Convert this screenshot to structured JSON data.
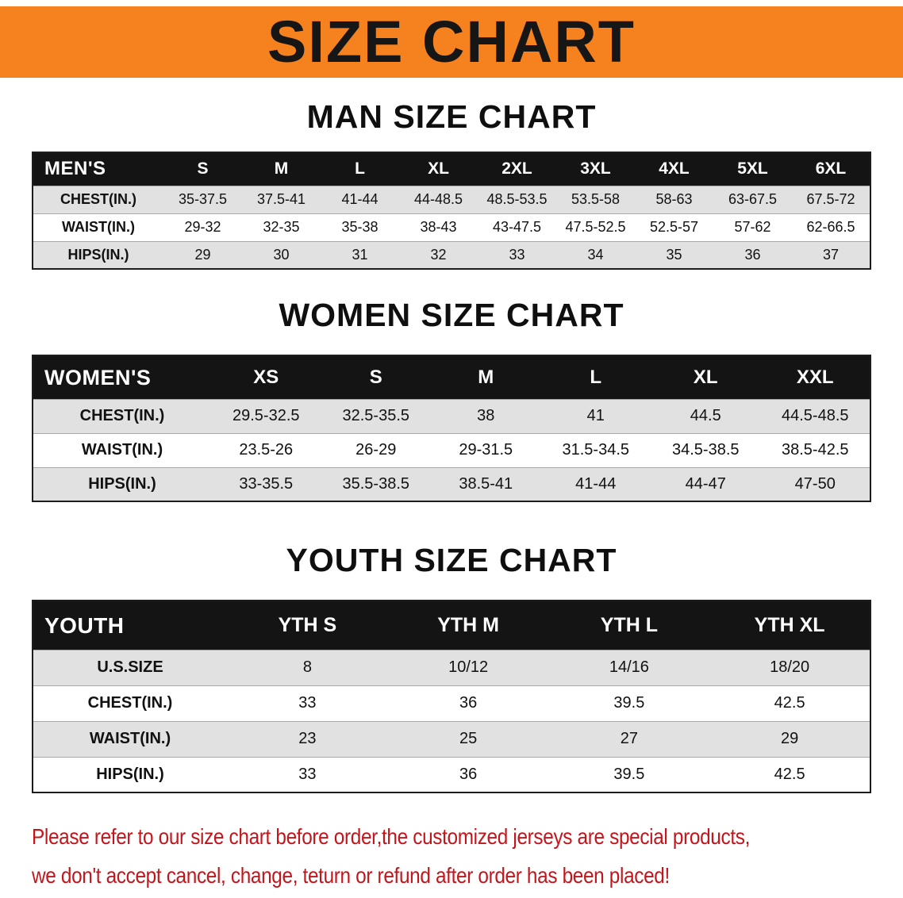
{
  "theme": {
    "banner_bg": "#f6821f",
    "banner_text": "#161616",
    "header_bg": "#141414",
    "header_text": "#ffffff",
    "stripe": "#e1e1e1",
    "notice_color": "#c3161c"
  },
  "banner": {
    "title": "SIZE CHART"
  },
  "sections": [
    {
      "heading": "MAN SIZE CHART",
      "table": {
        "header": [
          "MEN'S",
          "S",
          "M",
          "L",
          "XL",
          "2XL",
          "3XL",
          "4XL",
          "5XL",
          "6XL"
        ],
        "rows": [
          [
            "CHEST(IN.)",
            "35-37.5",
            "37.5-41",
            "41-44",
            "44-48.5",
            "48.5-53.5",
            "53.5-58",
            "58-63",
            "63-67.5",
            "67.5-72"
          ],
          [
            "WAIST(IN.)",
            "29-32",
            "32-35",
            "35-38",
            "38-43",
            "43-47.5",
            "47.5-52.5",
            "52.5-57",
            "57-62",
            "62-66.5"
          ],
          [
            "HIPS(IN.)",
            "29",
            "30",
            "31",
            "32",
            "33",
            "34",
            "35",
            "36",
            "37"
          ]
        ]
      }
    },
    {
      "heading": "WOMEN SIZE CHART",
      "table": {
        "header": [
          "WOMEN'S",
          "XS",
          "S",
          "M",
          "L",
          "XL",
          "XXL"
        ],
        "rows": [
          [
            "CHEST(IN.)",
            "29.5-32.5",
            "32.5-35.5",
            "38",
            "41",
            "44.5",
            "44.5-48.5"
          ],
          [
            "WAIST(IN.)",
            "23.5-26",
            "26-29",
            "29-31.5",
            "31.5-34.5",
            "34.5-38.5",
            "38.5-42.5"
          ],
          [
            "HIPS(IN.)",
            "33-35.5",
            "35.5-38.5",
            "38.5-41",
            "41-44",
            "44-47",
            "47-50"
          ]
        ]
      }
    },
    {
      "heading": "YOUTH SIZE CHART",
      "table": {
        "header": [
          "YOUTH",
          "YTH S",
          "YTH M",
          "YTH L",
          "YTH XL"
        ],
        "rows": [
          [
            "U.S.SIZE",
            "8",
            "10/12",
            "14/16",
            "18/20"
          ],
          [
            "CHEST(IN.)",
            "33",
            "36",
            "39.5",
            "42.5"
          ],
          [
            "WAIST(IN.)",
            "23",
            "25",
            "27",
            "29"
          ],
          [
            "HIPS(IN.)",
            "33",
            "36",
            "39.5",
            "42.5"
          ]
        ]
      }
    }
  ],
  "notice": {
    "line1": "Please refer to our size chart before order,the customized jerseys are special products,",
    "line2": "we don't accept cancel, change, teturn or refund after order has been placed!"
  }
}
